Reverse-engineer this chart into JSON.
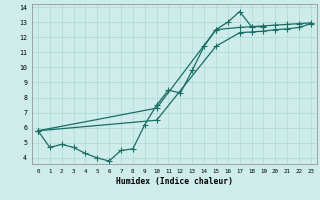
{
  "xlabel": "Humidex (Indice chaleur)",
  "background_color": "#ceecea",
  "grid_color": "#aed8d4",
  "line_color": "#1a6e65",
  "xlim": [
    -0.5,
    23.5
  ],
  "ylim": [
    3.6,
    14.2
  ],
  "xticks": [
    0,
    1,
    2,
    3,
    4,
    5,
    6,
    7,
    8,
    9,
    10,
    11,
    12,
    13,
    14,
    15,
    16,
    17,
    18,
    19,
    20,
    21,
    22,
    23
  ],
  "yticks": [
    4,
    5,
    6,
    7,
    8,
    9,
    10,
    11,
    12,
    13,
    14
  ],
  "line1_x": [
    0,
    1,
    2,
    3,
    4,
    5,
    6,
    7,
    8,
    9,
    10,
    11,
    12,
    13,
    14,
    15,
    16,
    17,
    18,
    19
  ],
  "line1_y": [
    5.8,
    4.7,
    4.9,
    4.7,
    4.3,
    4.0,
    3.8,
    4.5,
    4.6,
    6.2,
    7.5,
    8.5,
    8.3,
    9.8,
    11.4,
    12.5,
    13.0,
    13.7,
    12.7,
    12.7
  ],
  "line2_x": [
    0,
    10,
    15,
    17,
    18,
    19,
    20,
    21,
    22,
    23
  ],
  "line2_y": [
    5.8,
    7.3,
    12.5,
    12.65,
    12.7,
    12.75,
    12.8,
    12.85,
    12.9,
    12.95
  ],
  "line3_x": [
    0,
    10,
    15,
    17,
    18,
    19,
    20,
    21,
    22,
    23
  ],
  "line3_y": [
    5.8,
    6.5,
    11.4,
    12.3,
    12.35,
    12.4,
    12.5,
    12.55,
    12.65,
    12.9
  ]
}
